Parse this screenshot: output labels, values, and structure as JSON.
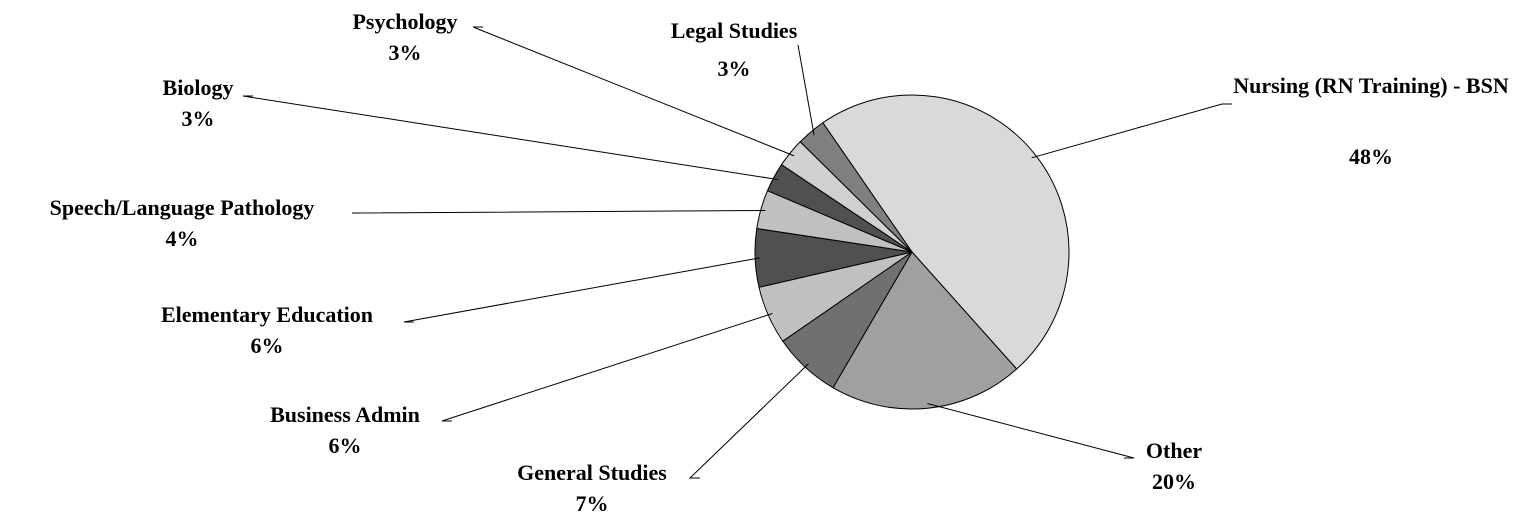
{
  "chart_data": {
    "type": "pie",
    "categories": [
      "Nursing (RN Training) - BSN",
      "Other",
      "General Studies",
      "Business Admin",
      "Elementary Education",
      "Speech/Language Pathology",
      "Biology",
      "Psychology",
      "Legal Studies"
    ],
    "values": [
      48,
      20,
      7,
      6,
      6,
      4,
      3,
      3,
      3
    ],
    "value_labels": [
      "48%",
      "20%",
      "7%",
      "6%",
      "6%",
      "4%",
      "3%",
      "3%",
      "3%"
    ],
    "colors": [
      "#d9d9d9",
      "#a0a0a0",
      "#707070",
      "#c0c0c0",
      "#505050",
      "#c0c0c0",
      "#505050",
      "#d0d0d0",
      "#808080"
    ]
  }
}
